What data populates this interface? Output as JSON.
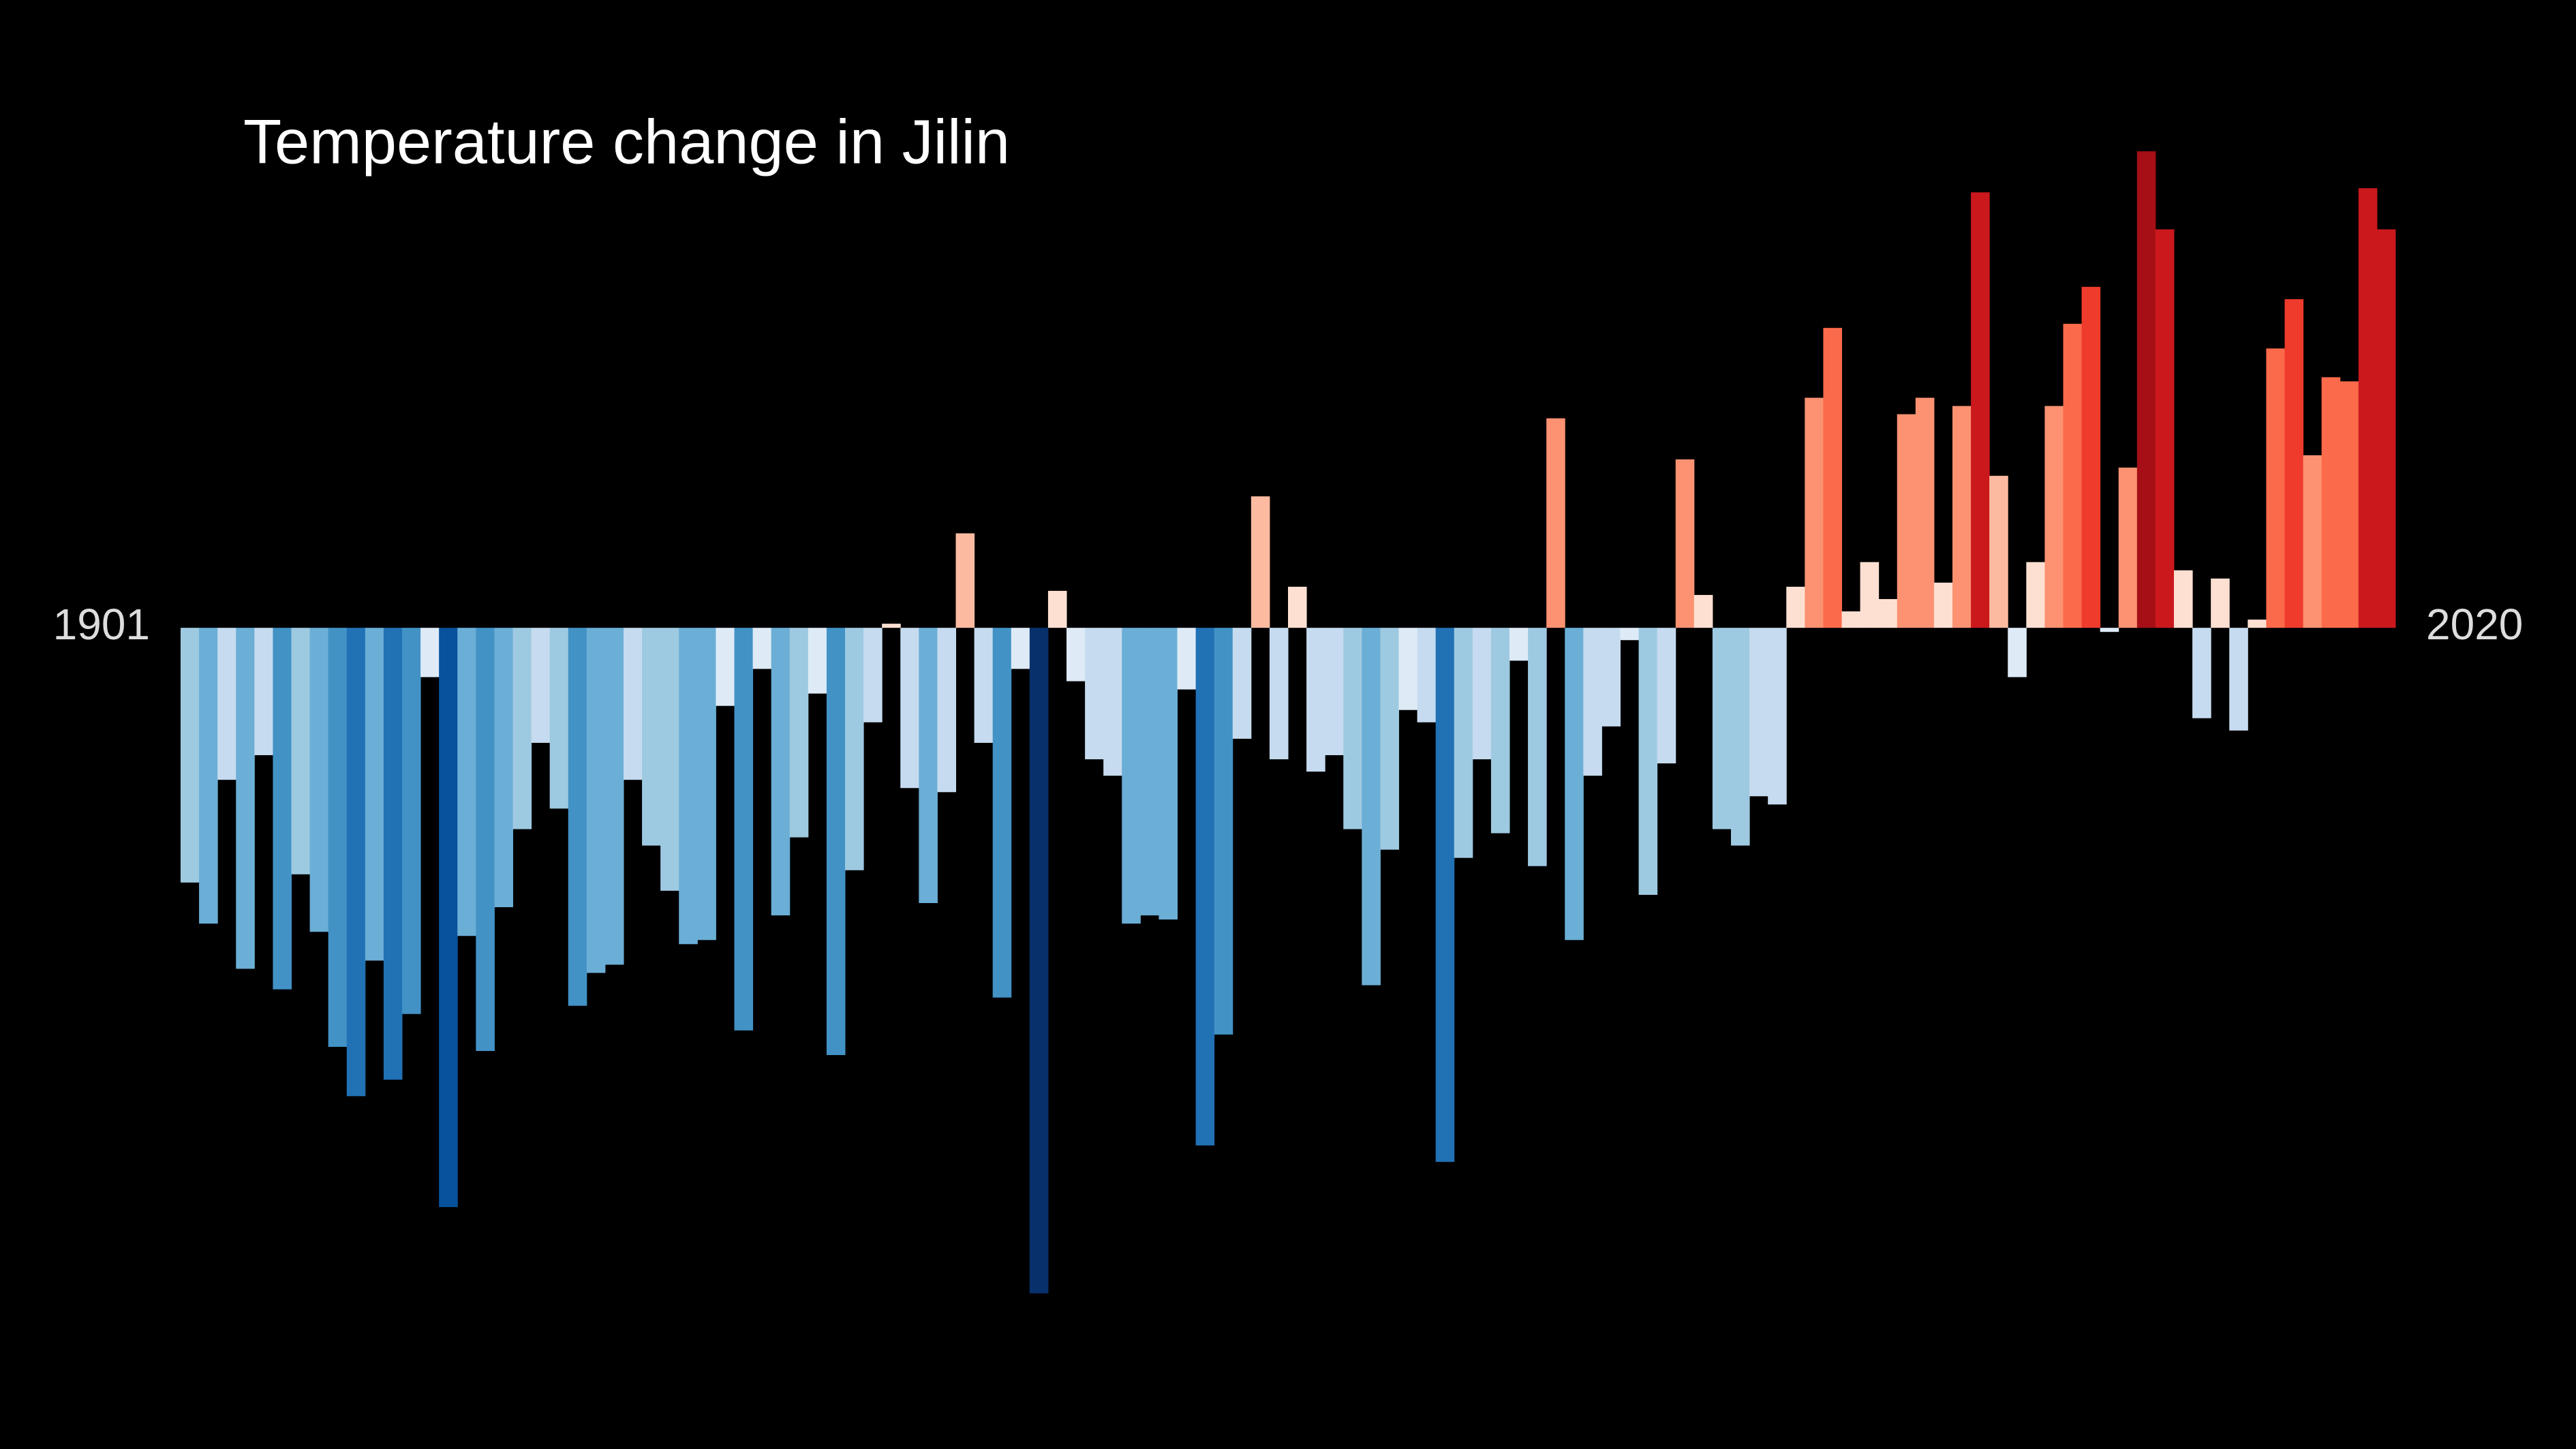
{
  "chart_data": {
    "type": "bar",
    "title": "Temperature change in Jilin",
    "categories": [
      "1901",
      null,
      null,
      null,
      null,
      null,
      null,
      null,
      null,
      null,
      null,
      null,
      null,
      null,
      null,
      null,
      null,
      null,
      null,
      null,
      null,
      null,
      null,
      null,
      null,
      null,
      null,
      null,
      null,
      null,
      null,
      null,
      null,
      null,
      null,
      null,
      null,
      null,
      null,
      null,
      null,
      null,
      null,
      null,
      null,
      null,
      null,
      null,
      null,
      null,
      null,
      null,
      null,
      null,
      null,
      null,
      null,
      null,
      null,
      null,
      null,
      null,
      null,
      null,
      null,
      null,
      null,
      null,
      null,
      null,
      null,
      null,
      null,
      null,
      null,
      null,
      null,
      null,
      null,
      null,
      null,
      null,
      null,
      null,
      null,
      null,
      null,
      null,
      null,
      null,
      null,
      null,
      null,
      null,
      null,
      null,
      null,
      null,
      null,
      null,
      null,
      null,
      null,
      null,
      null,
      null,
      null,
      null,
      null,
      null,
      null,
      null,
      null,
      null,
      null,
      null,
      null,
      null,
      null,
      "2020"
    ],
    "values": [
      -0.62,
      -0.72,
      -0.37,
      -0.83,
      -0.31,
      -0.88,
      -0.6,
      -0.74,
      -1.02,
      -1.14,
      -0.81,
      -1.1,
      -0.94,
      -0.12,
      -1.41,
      -0.75,
      -1.03,
      -0.68,
      -0.49,
      -0.28,
      -0.44,
      -0.92,
      -0.84,
      -0.82,
      -0.37,
      -0.53,
      -0.64,
      -0.77,
      -0.76,
      -0.19,
      -0.98,
      -0.1,
      -0.7,
      -0.51,
      -0.16,
      -1.04,
      -0.59,
      -0.23,
      0.01,
      -0.39,
      -0.67,
      -0.4,
      0.23,
      -0.28,
      -0.9,
      -0.1,
      -1.62,
      0.09,
      -0.13,
      -0.32,
      -0.36,
      -0.72,
      -0.7,
      -0.71,
      -0.15,
      -1.26,
      -0.99,
      -0.27,
      0.32,
      -0.32,
      0.1,
      -0.35,
      -0.31,
      -0.49,
      -0.87,
      -0.54,
      -0.2,
      -0.23,
      -1.3,
      -0.56,
      -0.32,
      -0.5,
      -0.08,
      -0.58,
      0.51,
      -0.76,
      -0.36,
      -0.24,
      -0.03,
      -0.65,
      -0.33,
      0.41,
      0.08,
      -0.49,
      -0.53,
      -0.41,
      -0.43,
      0.1,
      0.56,
      0.73,
      0.04,
      0.16,
      0.07,
      0.52,
      0.56,
      0.11,
      0.54,
      1.06,
      0.37,
      -0.12,
      0.16,
      0.54,
      0.74,
      0.83,
      -0.01,
      0.39,
      1.16,
      0.97,
      0.14,
      -0.22,
      0.12,
      -0.25,
      0.02,
      0.68,
      0.8,
      0.42,
      0.61,
      0.6,
      1.07,
      0.97
    ],
    "ylim": [
      -1.75,
      1.5
    ],
    "negative_colors": [
      "#deebf7",
      "#c6dbef",
      "#9ecae1",
      "#6baed6",
      "#4292c6",
      "#2171b5",
      "#08519c",
      "#08306b"
    ],
    "positive_colors": [
      "#fee0d2",
      "#fcbba1",
      "#fc9272",
      "#fb6a4a",
      "#ef3b2c",
      "#cb181d",
      "#a50f15",
      "#67000d"
    ],
    "grid": false
  }
}
